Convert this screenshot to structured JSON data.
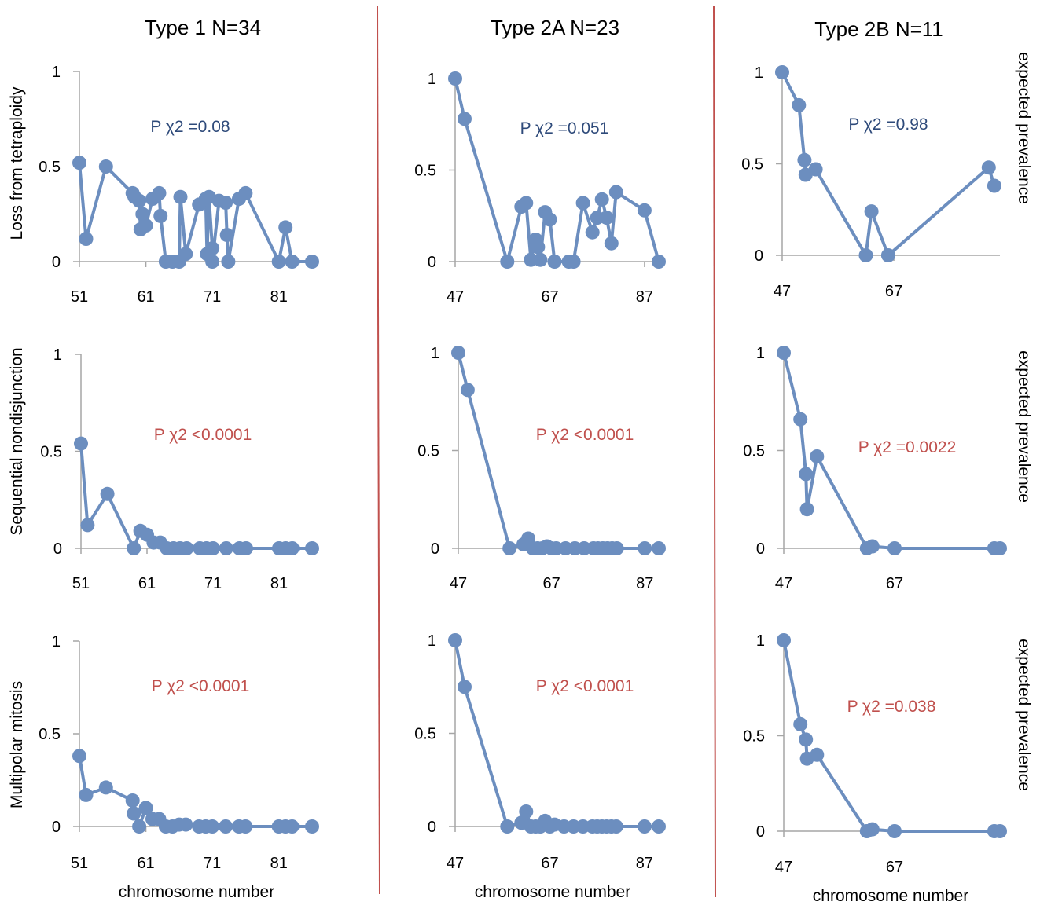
{
  "columns": [
    "Type 1  N=34",
    "Type 2A  N=23",
    "Type 2B  N=11"
  ],
  "row_labels": [
    "Loss from tetraploidy",
    "Sequential nondisjunction",
    "Multipolar mitosis"
  ],
  "right_label": "expected prevalence",
  "x_label": "chromosome number",
  "colors": {
    "series": "#6c8ebf",
    "pval_ns": "#2e4a7a",
    "pval_sig": "#c0504d",
    "separator": "#c0504d",
    "axis": "#a6a6a6"
  },
  "chart_data": [
    {
      "type": "line",
      "row": 0,
      "col": 0,
      "pvalue": "P χ2 =0.08",
      "significant": false,
      "xlim": [
        51,
        86
      ],
      "ylim": [
        0,
        1
      ],
      "xticks": [
        51,
        61,
        71,
        81
      ],
      "yticks": [
        0,
        0.5,
        1
      ],
      "x": [
        51,
        52,
        55,
        59,
        59.3,
        60,
        60.2,
        60.5,
        61,
        62,
        63,
        63.2,
        64,
        65,
        66,
        66.2,
        67,
        69,
        70,
        70.2,
        70.5,
        71,
        71,
        72,
        73,
        73.2,
        73.4,
        75,
        76,
        81,
        82,
        83,
        86
      ],
      "y": [
        0.52,
        0.12,
        0.5,
        0.36,
        0.34,
        0.32,
        0.17,
        0.25,
        0.19,
        0.33,
        0.36,
        0.24,
        0,
        0,
        0,
        0.34,
        0.04,
        0.3,
        0.33,
        0.04,
        0.34,
        0.07,
        0,
        0.32,
        0.31,
        0.14,
        0,
        0.33,
        0.36,
        0,
        0.18,
        0,
        0
      ]
    },
    {
      "type": "line",
      "row": 0,
      "col": 1,
      "pvalue": "P χ2 =0.051",
      "significant": false,
      "xlim": [
        47,
        90
      ],
      "ylim": [
        0,
        1
      ],
      "xticks": [
        47,
        67,
        87
      ],
      "yticks": [
        0,
        0.5,
        1
      ],
      "x": [
        47,
        49,
        58,
        61,
        62,
        63,
        64,
        64.5,
        65,
        66,
        67,
        68,
        71,
        72,
        74,
        76,
        77,
        78,
        79,
        80,
        81,
        87,
        90
      ],
      "y": [
        1,
        0.78,
        0,
        0.3,
        0.32,
        0.01,
        0.12,
        0.08,
        0.01,
        0.27,
        0.23,
        0,
        0,
        0,
        0.32,
        0.16,
        0.24,
        0.34,
        0.24,
        0.1,
        0.38,
        0.28,
        0
      ],
      "y_note": ""
    },
    {
      "type": "line",
      "row": 0,
      "col": 2,
      "pvalue": "P χ2 =0.98",
      "significant": false,
      "xlim": [
        47,
        86
      ],
      "ylim": [
        0,
        1
      ],
      "xticks": [
        47,
        67
      ],
      "yticks": [
        0,
        0.5,
        1
      ],
      "x": [
        47,
        50,
        51,
        51.2,
        53,
        62,
        63,
        66,
        84,
        85
      ],
      "y": [
        1,
        0.82,
        0.52,
        0.44,
        0.47,
        0,
        0.24,
        0,
        0.48,
        0.38
      ]
    },
    {
      "type": "line",
      "row": 1,
      "col": 0,
      "pvalue": "P χ2 <0.0001",
      "significant": true,
      "xlim": [
        51,
        86
      ],
      "ylim": [
        0,
        1
      ],
      "xticks": [
        51,
        61,
        71,
        81
      ],
      "yticks": [
        0,
        0.5,
        1
      ],
      "x": [
        51,
        52,
        55,
        59,
        60,
        61,
        62,
        63,
        64,
        65,
        66,
        67,
        69,
        70,
        71,
        73,
        75,
        76,
        81,
        82,
        83,
        86
      ],
      "y": [
        0.54,
        0.12,
        0.28,
        0,
        0.09,
        0.07,
        0.03,
        0.03,
        0,
        0,
        0,
        0,
        0,
        0,
        0,
        0,
        0,
        0,
        0,
        0,
        0,
        0
      ]
    },
    {
      "type": "line",
      "row": 1,
      "col": 1,
      "pvalue": "P χ2 <0.0001",
      "significant": true,
      "xlim": [
        47,
        90
      ],
      "ylim": [
        0,
        1
      ],
      "xticks": [
        47,
        67,
        87
      ],
      "yticks": [
        0,
        0.5,
        1
      ],
      "x": [
        47,
        49,
        58,
        61,
        62,
        63,
        64,
        65,
        66,
        67,
        68,
        70,
        72,
        74,
        76,
        77,
        78,
        79,
        80,
        81,
        87,
        90
      ],
      "y": [
        1,
        0.81,
        0,
        0.02,
        0.05,
        0,
        0,
        0,
        0.01,
        0,
        0,
        0,
        0,
        0,
        0,
        0,
        0,
        0,
        0,
        0,
        0,
        0
      ]
    },
    {
      "type": "line",
      "row": 1,
      "col": 2,
      "pvalue": "P χ2 =0.0022",
      "significant": true,
      "xlim": [
        47,
        86
      ],
      "ylim": [
        0,
        1
      ],
      "xticks": [
        47,
        67
      ],
      "yticks": [
        0,
        0.5,
        1
      ],
      "x": [
        47,
        50,
        51,
        51.2,
        53,
        62,
        63,
        67,
        85,
        86
      ],
      "y": [
        1,
        0.66,
        0.38,
        0.2,
        0.47,
        0,
        0.01,
        0,
        0,
        0
      ]
    },
    {
      "type": "line",
      "row": 2,
      "col": 0,
      "pvalue": "P χ2 <0.0001",
      "significant": true,
      "xlim": [
        51,
        86
      ],
      "ylim": [
        0,
        1
      ],
      "xticks": [
        51,
        61,
        71,
        81
      ],
      "yticks": [
        0,
        0.5,
        1
      ],
      "x": [
        51,
        52,
        55,
        59,
        59.2,
        60,
        61,
        62,
        63,
        64,
        65,
        66,
        67,
        69,
        70,
        71,
        73,
        75,
        76,
        81,
        82,
        83,
        86
      ],
      "y": [
        0.38,
        0.17,
        0.21,
        0.14,
        0.07,
        0,
        0.1,
        0.04,
        0.04,
        0,
        0,
        0.01,
        0.01,
        0,
        0,
        0,
        0,
        0,
        0,
        0,
        0,
        0,
        0
      ]
    },
    {
      "type": "line",
      "row": 2,
      "col": 1,
      "pvalue": "P χ2 <0.0001",
      "significant": true,
      "xlim": [
        47,
        90
      ],
      "ylim": [
        0,
        1
      ],
      "xticks": [
        47,
        67,
        87
      ],
      "yticks": [
        0,
        0.5,
        1
      ],
      "x": [
        47,
        49,
        58,
        61,
        62,
        63,
        64,
        65,
        66,
        67,
        68,
        70,
        72,
        74,
        76,
        77,
        78,
        79,
        80,
        81,
        87,
        90
      ],
      "y": [
        1,
        0.75,
        0,
        0.02,
        0.08,
        0,
        0,
        0,
        0.03,
        0,
        0.01,
        0,
        0,
        0,
        0,
        0,
        0,
        0,
        0,
        0,
        0,
        0
      ]
    },
    {
      "type": "line",
      "row": 2,
      "col": 2,
      "pvalue": "P χ2 =0.038",
      "significant": true,
      "xlim": [
        47,
        86
      ],
      "ylim": [
        0,
        1
      ],
      "xticks": [
        47,
        67
      ],
      "yticks": [
        0,
        0.5,
        1
      ],
      "x": [
        47,
        50,
        51,
        51.2,
        53,
        62,
        63,
        67,
        85,
        86
      ],
      "y": [
        1,
        0.56,
        0.48,
        0.38,
        0.4,
        0,
        0.01,
        0,
        0,
        0
      ]
    }
  ]
}
